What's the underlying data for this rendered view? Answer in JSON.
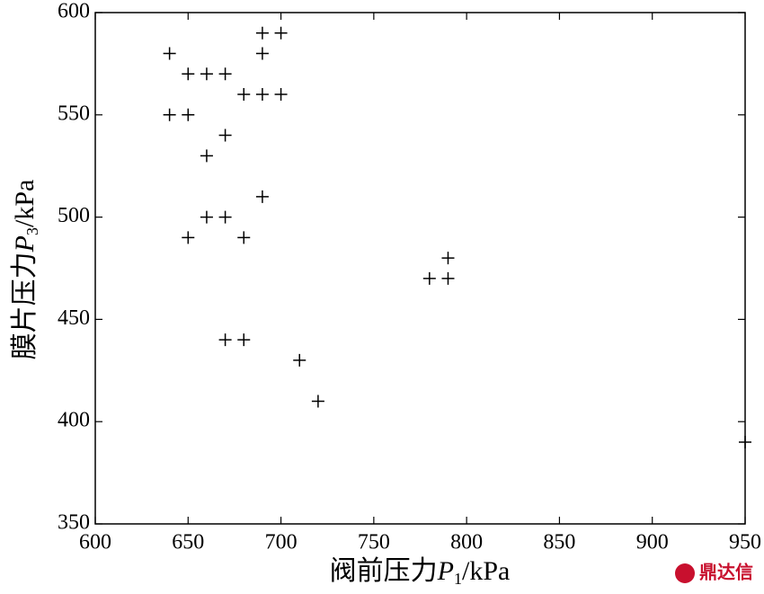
{
  "chart_data": {
    "type": "scatter",
    "x_label": {
      "text": "阀前压力",
      "var": "P",
      "sub": "1",
      "unit": "/kPa"
    },
    "y_label": {
      "text": "膜片压力",
      "var": "P",
      "sub": "3",
      "unit": "/kPa"
    },
    "marker": "+",
    "color": "#000000",
    "x": [
      640,
      690,
      700,
      690,
      650,
      660,
      670,
      680,
      690,
      700,
      640,
      650,
      670,
      660,
      690,
      660,
      670,
      650,
      680,
      790,
      780,
      790,
      670,
      680,
      710,
      720,
      950
    ],
    "y": [
      580,
      590,
      590,
      580,
      570,
      570,
      570,
      560,
      560,
      560,
      550,
      550,
      540,
      530,
      510,
      500,
      500,
      490,
      490,
      480,
      470,
      470,
      440,
      440,
      430,
      410,
      390
    ],
    "xlim": [
      600,
      950
    ],
    "xticks": [
      600,
      650,
      700,
      750,
      800,
      850,
      900,
      950
    ],
    "ylim": [
      350,
      600
    ],
    "yticks": [
      350,
      400,
      450,
      500,
      550,
      600
    ],
    "grid": false
  },
  "watermark": "鼎达信"
}
